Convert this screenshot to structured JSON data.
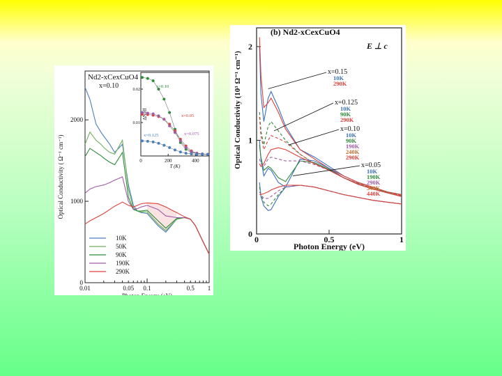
{
  "chart_data": [
    {
      "type": "line",
      "panel": "left",
      "title": "Nd2-xCexCuO4",
      "subtitle": "x=0.10",
      "xlabel": "Photon Energy (eV)",
      "ylabel": "Optical Conductivity ( Ω⁻¹ cm⁻¹)",
      "x_scale": "log",
      "xlim": [
        0.01,
        1
      ],
      "ylim": [
        0,
        2600
      ],
      "x_ticks": [
        "0.01",
        "0.05",
        "0.1",
        "0.5",
        "1"
      ],
      "y_ticks": [
        "0",
        "1000",
        "2000"
      ],
      "legend_position": "bottom-left",
      "series": [
        {
          "name": "10K",
          "color": "#4a7fc0",
          "dash": "",
          "x": [
            0.01,
            0.012,
            0.015,
            0.018,
            0.02,
            0.025,
            0.03,
            0.04,
            0.05,
            0.06,
            0.07,
            0.08,
            0.1,
            0.15,
            0.2,
            0.3,
            0.4,
            0.5,
            0.6,
            0.8,
            1.0
          ],
          "y": [
            2400,
            2250,
            1950,
            1850,
            1800,
            1700,
            1600,
            1700,
            1200,
            950,
            880,
            860,
            850,
            700,
            620,
            780,
            800,
            780,
            700,
            500,
            350
          ]
        },
        {
          "name": "50K",
          "color": "#6fae5b",
          "dash": "",
          "x": [
            0.01,
            0.012,
            0.015,
            0.018,
            0.02,
            0.025,
            0.03,
            0.04,
            0.05,
            0.06,
            0.07,
            0.08,
            0.1,
            0.15,
            0.2,
            0.3,
            0.4,
            0.5,
            0.6,
            0.8,
            1.0
          ],
          "y": [
            1700,
            1850,
            1750,
            1700,
            1660,
            1600,
            1580,
            1750,
            1150,
            920,
            880,
            870,
            870,
            720,
            640,
            780,
            800,
            780,
            700,
            500,
            350
          ]
        },
        {
          "name": "90K",
          "color": "#2e8b3a",
          "dash": "",
          "x": [
            0.01,
            0.012,
            0.015,
            0.018,
            0.02,
            0.025,
            0.03,
            0.04,
            0.05,
            0.06,
            0.07,
            0.08,
            0.1,
            0.15,
            0.2,
            0.3,
            0.4,
            0.5,
            0.6,
            0.8,
            1.0
          ],
          "y": [
            1550,
            1650,
            1600,
            1560,
            1530,
            1480,
            1450,
            1600,
            1050,
            900,
            880,
            880,
            890,
            760,
            670,
            790,
            800,
            780,
            700,
            500,
            350
          ]
        },
        {
          "name": "190K",
          "color": "#a05aa8",
          "dash": "",
          "x": [
            0.01,
            0.012,
            0.015,
            0.02,
            0.025,
            0.03,
            0.04,
            0.05,
            0.06,
            0.07,
            0.08,
            0.1,
            0.15,
            0.2,
            0.3,
            0.4,
            0.5,
            0.6,
            0.8,
            1.0
          ],
          "y": [
            1100,
            1150,
            1180,
            1200,
            1230,
            1260,
            1300,
            1000,
            900,
            910,
            930,
            950,
            900,
            820,
            800,
            800,
            780,
            700,
            500,
            350
          ]
        },
        {
          "name": "290K",
          "color": "#e0403a",
          "dash": "",
          "x": [
            0.01,
            0.012,
            0.015,
            0.02,
            0.025,
            0.03,
            0.04,
            0.05,
            0.06,
            0.07,
            0.08,
            0.1,
            0.15,
            0.2,
            0.3,
            0.4,
            0.5,
            0.6,
            0.8,
            1.0
          ],
          "y": [
            720,
            760,
            800,
            850,
            900,
            940,
            990,
            950,
            930,
            950,
            970,
            980,
            970,
            930,
            860,
            810,
            780,
            700,
            500,
            350
          ]
        }
      ],
      "inset": {
        "ylabel": "ΔNeff",
        "xlabel": "T (K)",
        "x_ticks": [
          "0",
          "200",
          "400"
        ],
        "y_ticks": [
          "0.01",
          "0.02"
        ],
        "xlim": [
          0,
          500
        ],
        "ylim": [
          0,
          0.025
        ],
        "annotations": [
          "x=0.10",
          "x=0.05",
          "x=0.125",
          "x=0.075"
        ],
        "series": [
          {
            "name": "x=0.10",
            "color": "#2e8b3a",
            "x": [
              10,
              50,
              90,
              130,
              170,
              210,
              250,
              290,
              330,
              370,
              410,
              450,
              490
            ],
            "y": [
              0.0235,
              0.0232,
              0.0225,
              0.02,
              0.017,
              0.013,
              0.008,
              0.004,
              0.002,
              0.001,
              0.0008,
              0.0006,
              0.0005
            ]
          },
          {
            "name": "x=0.05",
            "color": "#e0403a",
            "x": [
              10,
              50,
              90,
              130,
              170,
              210,
              250,
              290,
              330,
              370,
              410,
              450,
              490
            ],
            "y": [
              0.0125,
              0.0124,
              0.0122,
              0.0118,
              0.011,
              0.0095,
              0.0075,
              0.005,
              0.003,
              0.0015,
              0.0008,
              0.0006,
              0.0005
            ]
          },
          {
            "name": "x=0.075",
            "color": "#a05aa8",
            "x": [
              10,
              50,
              90,
              130,
              170,
              210,
              250,
              290,
              330,
              370,
              410,
              450,
              490
            ],
            "y": [
              0.013,
              0.0128,
              0.0126,
              0.012,
              0.011,
              0.009,
              0.007,
              0.0045,
              0.0025,
              0.0012,
              0.0008,
              0.0006,
              0.0005
            ]
          },
          {
            "name": "x=0.125",
            "color": "#4a7fc0",
            "x": [
              10,
              50,
              90,
              130,
              170,
              210,
              250,
              290,
              330,
              370,
              410,
              450,
              490
            ],
            "y": [
              0.0045,
              0.0044,
              0.0042,
              0.0038,
              0.0032,
              0.0025,
              0.0018,
              0.0012,
              0.0008,
              0.0006,
              0.0005,
              0.0005,
              0.0005
            ]
          }
        ]
      }
    },
    {
      "type": "line",
      "panel": "right",
      "title": "(b)  Nd2-xCexCuO4",
      "subtitle": "E ⊥ c",
      "xlabel": "Photon Energy (eV)",
      "ylabel": "Optical Conductivity (10³ Ω⁻¹ cm⁻¹)",
      "xlim": [
        0,
        1
      ],
      "ylim": [
        0,
        2.2
      ],
      "x_ticks": [
        "0",
        "0.5",
        "1"
      ],
      "y_ticks": [
        "0",
        "1",
        "2"
      ],
      "annotations": [
        {
          "label": "x=0.15",
          "temps": [
            "10K",
            "290K"
          ],
          "colors": [
            "#3a6fc0",
            "#e0403a"
          ],
          "target": [
            0.08,
            1.55
          ]
        },
        {
          "label": "x=0.125",
          "temps": [
            "10K",
            "90K",
            "290K"
          ],
          "colors": [
            "#3a6fc0",
            "#2e8b3a",
            "#e0403a"
          ],
          "target": [
            0.12,
            1.1
          ]
        },
        {
          "label": "x=0.10",
          "temps": [
            "10K",
            "90K",
            "190K",
            "240K",
            "290K"
          ],
          "colors": [
            "#3a6fc0",
            "#2e8b3a",
            "#a05aa8",
            "#c07030",
            "#e0403a"
          ],
          "target": [
            0.22,
            0.95
          ]
        },
        {
          "label": "x=0.05",
          "temps": [
            "10K",
            "190K",
            "290K",
            "340K",
            "440K"
          ],
          "colors": [
            "#3a6fc0",
            "#2e8b3a",
            "#a05aa8",
            "#c07030",
            "#e0403a"
          ],
          "target": [
            0.25,
            0.62
          ]
        }
      ],
      "series": [
        {
          "color": "#3a6fc0",
          "dash": "",
          "x": [
            0.02,
            0.03,
            0.05,
            0.08,
            0.1,
            0.15,
            0.2,
            0.3,
            0.4,
            0.5,
            0.6,
            0.7,
            0.8,
            0.9,
            1.0
          ],
          "y": [
            2.0,
            1.5,
            1.2,
            1.45,
            1.52,
            1.35,
            1.15,
            0.9,
            0.82,
            0.72,
            0.62,
            0.55,
            0.5,
            0.45,
            0.42
          ]
        },
        {
          "color": "#e0403a",
          "dash": "",
          "x": [
            0.02,
            0.03,
            0.05,
            0.08,
            0.1,
            0.15,
            0.2,
            0.3,
            0.4,
            0.5,
            0.6,
            0.7,
            0.8,
            0.9,
            1.0
          ],
          "y": [
            2.1,
            1.7,
            1.35,
            1.4,
            1.45,
            1.3,
            1.12,
            0.9,
            0.8,
            0.7,
            0.62,
            0.55,
            0.5,
            0.45,
            0.42
          ]
        },
        {
          "color": "#2e8b3a",
          "dash": "4,3",
          "x": [
            0.02,
            0.03,
            0.05,
            0.08,
            0.1,
            0.15,
            0.2,
            0.3,
            0.4,
            0.5,
            0.6,
            0.7,
            0.8,
            0.9,
            1.0
          ],
          "y": [
            1.3,
            1.1,
            0.95,
            1.15,
            1.2,
            1.1,
            1.0,
            0.85,
            0.75,
            0.68,
            0.6,
            0.54,
            0.49,
            0.45,
            0.41
          ]
        },
        {
          "color": "#e0403a",
          "dash": "4,3",
          "x": [
            0.02,
            0.03,
            0.05,
            0.08,
            0.1,
            0.15,
            0.2,
            0.3,
            0.4,
            0.5,
            0.6,
            0.7,
            0.8,
            0.9,
            1.0
          ],
          "y": [
            1.25,
            1.05,
            0.9,
            1.0,
            1.05,
            1.02,
            0.98,
            0.85,
            0.75,
            0.68,
            0.6,
            0.54,
            0.49,
            0.45,
            0.41
          ]
        },
        {
          "color": "#3a6fc0",
          "dash": "",
          "x": [
            0.02,
            0.03,
            0.05,
            0.08,
            0.1,
            0.15,
            0.2,
            0.3,
            0.4,
            0.5,
            0.6,
            0.7,
            0.8,
            0.9,
            1.0
          ],
          "y": [
            1.0,
            0.8,
            0.62,
            0.7,
            0.68,
            0.55,
            0.5,
            0.8,
            0.78,
            0.7,
            0.6,
            0.53,
            0.48,
            0.44,
            0.4
          ]
        },
        {
          "color": "#2e8b3a",
          "dash": "",
          "x": [
            0.02,
            0.03,
            0.05,
            0.08,
            0.1,
            0.15,
            0.2,
            0.3,
            0.4,
            0.5,
            0.6,
            0.7,
            0.8,
            0.9,
            1.0
          ],
          "y": [
            0.95,
            0.82,
            0.68,
            0.72,
            0.7,
            0.6,
            0.56,
            0.78,
            0.76,
            0.69,
            0.6,
            0.53,
            0.48,
            0.44,
            0.4
          ]
        },
        {
          "color": "#a05aa8",
          "dash": "4,3",
          "x": [
            0.02,
            0.03,
            0.05,
            0.08,
            0.1,
            0.15,
            0.2,
            0.3,
            0.4,
            0.5,
            0.6,
            0.7,
            0.8,
            0.9,
            1.0
          ],
          "y": [
            0.8,
            0.75,
            0.72,
            0.8,
            0.82,
            0.8,
            0.78,
            0.78,
            0.74,
            0.68,
            0.6,
            0.53,
            0.48,
            0.44,
            0.4
          ]
        },
        {
          "color": "#e0403a",
          "dash": "",
          "x": [
            0.02,
            0.03,
            0.05,
            0.08,
            0.1,
            0.15,
            0.2,
            0.3,
            0.4,
            0.5,
            0.6,
            0.7,
            0.8,
            0.9,
            1.0
          ],
          "y": [
            0.75,
            0.72,
            0.75,
            0.85,
            0.9,
            0.92,
            0.9,
            0.82,
            0.75,
            0.68,
            0.6,
            0.53,
            0.48,
            0.44,
            0.4
          ]
        },
        {
          "color": "#3a6fc0",
          "dash": "",
          "x": [
            0.02,
            0.03,
            0.05,
            0.08,
            0.1,
            0.15,
            0.2,
            0.3,
            0.4,
            0.5,
            0.6,
            0.7,
            0.8,
            0.9,
            1.0
          ],
          "y": [
            0.55,
            0.4,
            0.3,
            0.25,
            0.26,
            0.4,
            0.5,
            0.52,
            0.5,
            0.46,
            0.42,
            0.39,
            0.36,
            0.34,
            0.32
          ]
        },
        {
          "color": "#2e8b3a",
          "dash": "4,3",
          "x": [
            0.02,
            0.03,
            0.05,
            0.08,
            0.1,
            0.15,
            0.2,
            0.3,
            0.4,
            0.5,
            0.6,
            0.7,
            0.8,
            0.9,
            1.0
          ],
          "y": [
            0.5,
            0.42,
            0.34,
            0.3,
            0.32,
            0.42,
            0.5,
            0.52,
            0.5,
            0.46,
            0.42,
            0.39,
            0.36,
            0.34,
            0.32
          ]
        },
        {
          "color": "#a05aa8",
          "dash": "4,3",
          "x": [
            0.02,
            0.03,
            0.05,
            0.08,
            0.1,
            0.15,
            0.2,
            0.3,
            0.4,
            0.5,
            0.6,
            0.7,
            0.8,
            0.9,
            1.0
          ],
          "y": [
            0.45,
            0.42,
            0.38,
            0.38,
            0.4,
            0.46,
            0.5,
            0.52,
            0.5,
            0.46,
            0.42,
            0.39,
            0.36,
            0.34,
            0.32
          ]
        },
        {
          "color": "#e0403a",
          "dash": "",
          "x": [
            0.02,
            0.03,
            0.05,
            0.08,
            0.1,
            0.15,
            0.2,
            0.3,
            0.4,
            0.5,
            0.6,
            0.7,
            0.8,
            0.9,
            1.0
          ],
          "y": [
            0.42,
            0.42,
            0.43,
            0.45,
            0.47,
            0.5,
            0.52,
            0.52,
            0.5,
            0.46,
            0.42,
            0.39,
            0.36,
            0.34,
            0.32
          ]
        }
      ]
    }
  ]
}
